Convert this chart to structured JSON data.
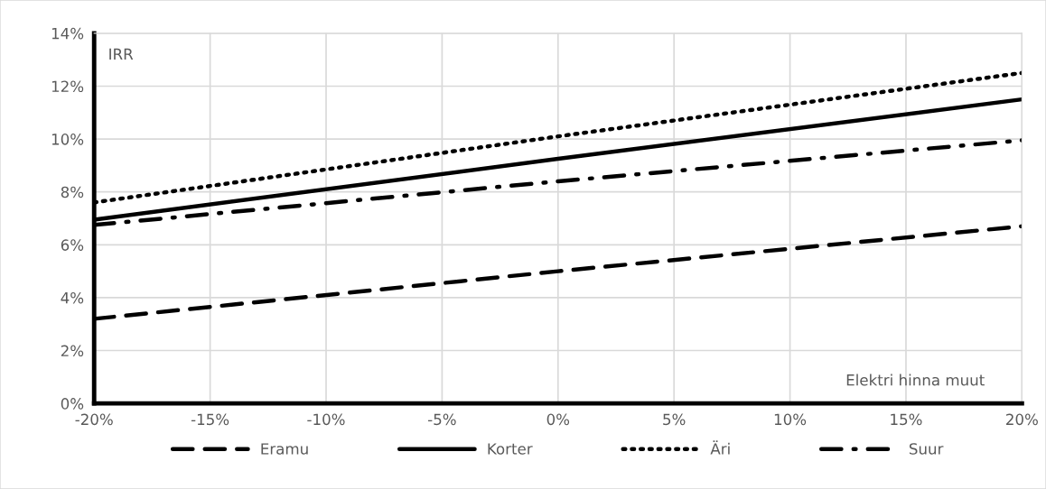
{
  "chart_data": {
    "type": "line",
    "ylabel": "IRR",
    "xlabel": "Elektri hinna muut",
    "x": [
      -20,
      0,
      20
    ],
    "series": [
      {
        "name": "Eramu",
        "color": "#000000",
        "line_style": "dashed",
        "values": [
          3.2,
          5.0,
          6.7
        ]
      },
      {
        "name": "Korter",
        "color": "#000000",
        "line_style": "solid",
        "values": [
          6.95,
          9.25,
          11.5
        ]
      },
      {
        "name": "Äri",
        "color": "#000000",
        "line_style": "dotted",
        "values": [
          7.6,
          10.1,
          12.5
        ]
      },
      {
        "name": "Suur",
        "color": "#000000",
        "line_style": "dashdot",
        "values": [
          6.75,
          8.4,
          9.95
        ]
      }
    ],
    "xlim": [
      -20,
      20
    ],
    "xticks": [
      {
        "value": -20,
        "label": "-20%"
      },
      {
        "value": -15,
        "label": "-15%"
      },
      {
        "value": -10,
        "label": "-10%"
      },
      {
        "value": -5,
        "label": "-5%"
      },
      {
        "value": 0,
        "label": "0%"
      },
      {
        "value": 5,
        "label": "5%"
      },
      {
        "value": 10,
        "label": "10%"
      },
      {
        "value": 15,
        "label": "15%"
      },
      {
        "value": 20,
        "label": "20%"
      }
    ],
    "ylim": [
      0,
      14
    ],
    "yticks": [
      {
        "value": 0,
        "label": "0%"
      },
      {
        "value": 2,
        "label": "2%"
      },
      {
        "value": 4,
        "label": "4%"
      },
      {
        "value": 6,
        "label": "6%"
      },
      {
        "value": 8,
        "label": "8%"
      },
      {
        "value": 10,
        "label": "10%"
      },
      {
        "value": 12,
        "label": "12%"
      },
      {
        "value": 14,
        "label": "14%"
      }
    ],
    "grid": true,
    "legend": "bottom",
    "marker": "none"
  }
}
